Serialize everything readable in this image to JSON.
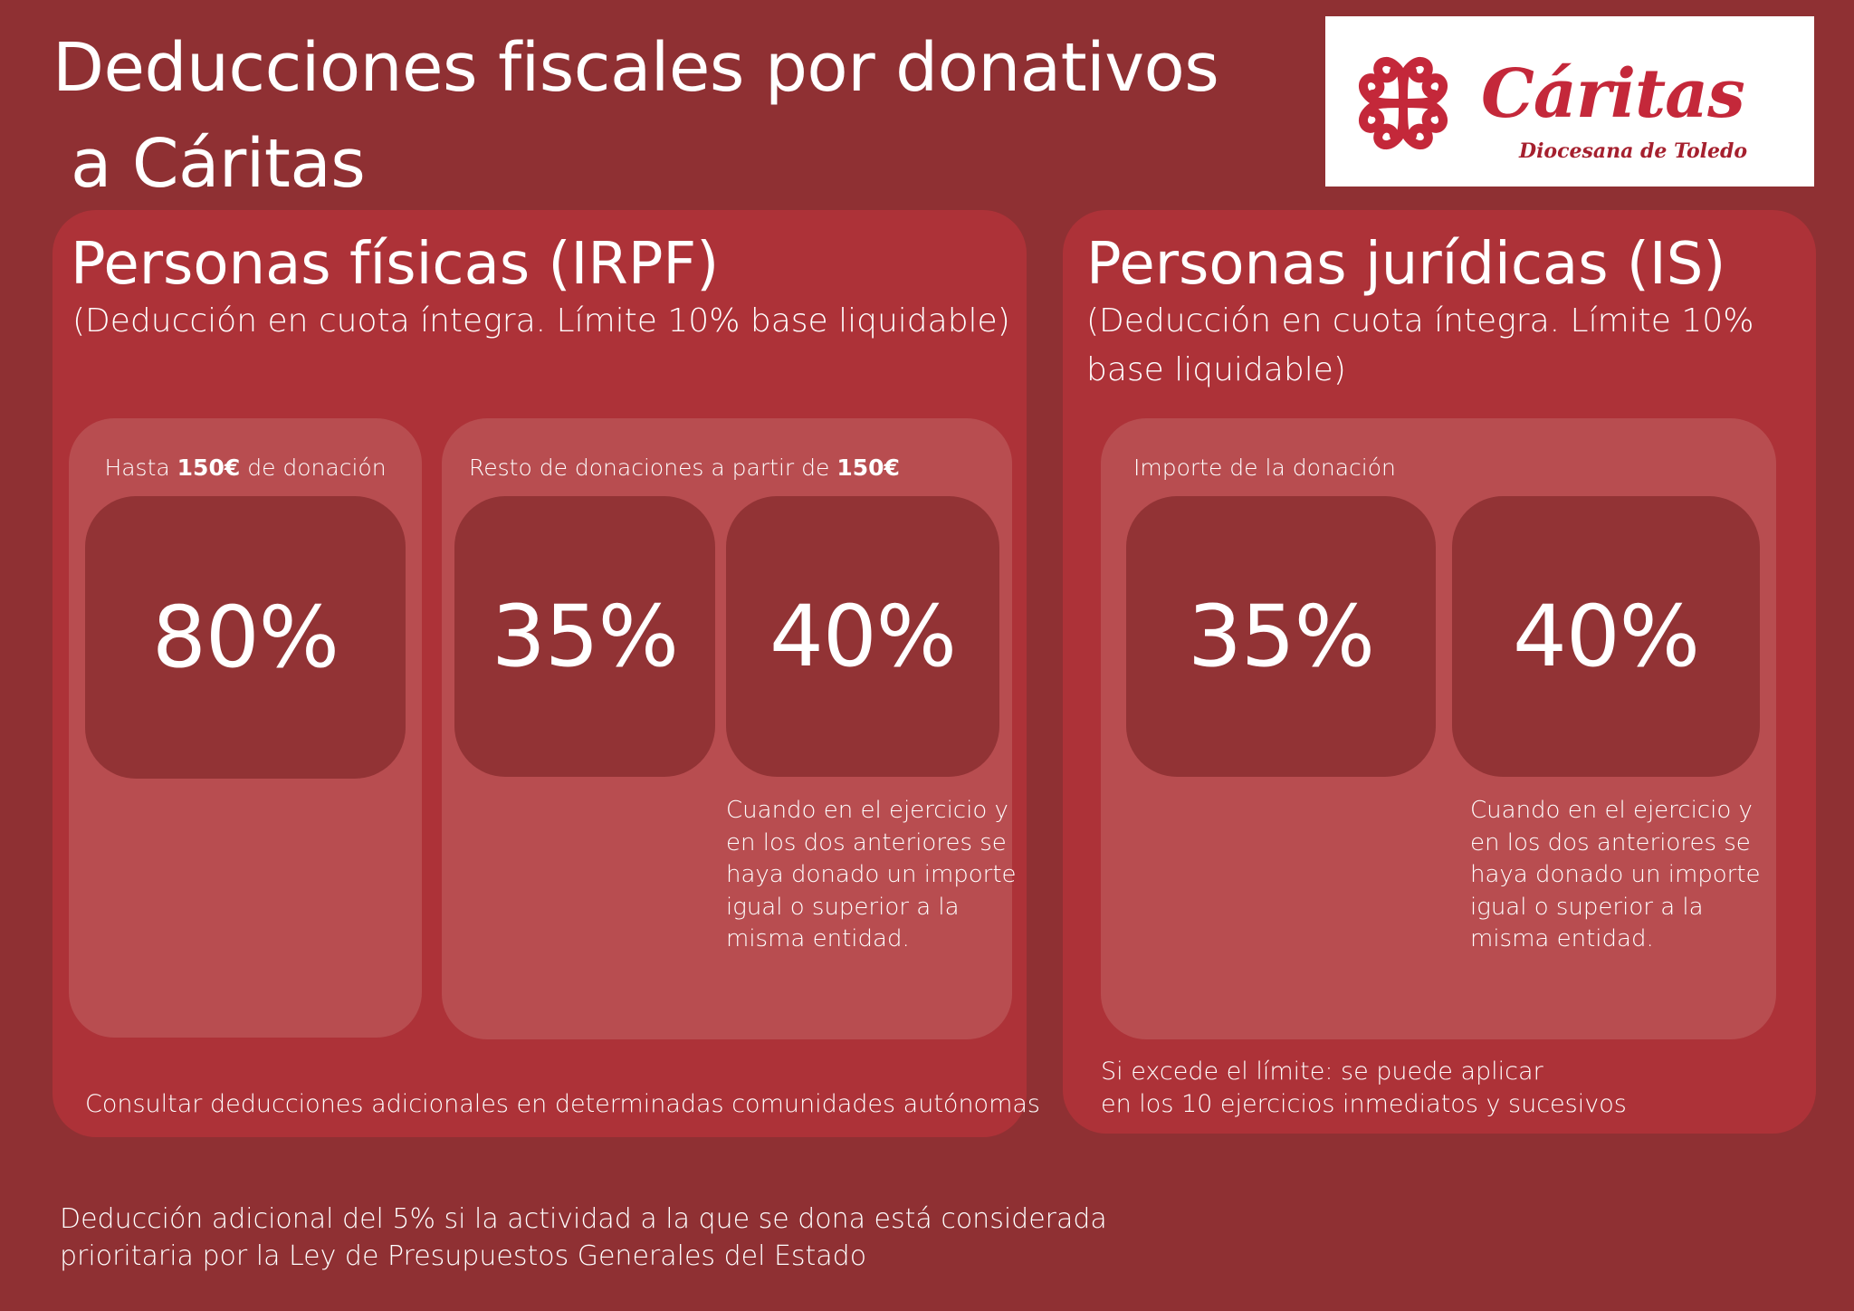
{
  "title": {
    "line1": "Deducciones fiscales por donativos",
    "line2": "a Cáritas"
  },
  "logo": {
    "name": "Cáritas",
    "subtitle": "Diocesana de Toledo",
    "icon": "caritas-cross-icon",
    "color": "#c4283a"
  },
  "colors": {
    "background": "#8f3033",
    "panel": "#ad3238",
    "card": "#b84d50",
    "box": "#923335"
  },
  "irpf": {
    "heading": "Personas físicas (IRPF)",
    "subheading": "(Deducción en cuota íntegra. Límite 10% base liquidable)",
    "card1": {
      "label_pre": "Hasta ",
      "label_bold": "150€",
      "label_post": " de donación",
      "value": "80%"
    },
    "card2": {
      "label_pre": "Resto de donaciones a partir de ",
      "label_bold": "150€",
      "value_a": "35%",
      "value_b": "40%",
      "note": [
        "Cuando en el ejercicio y",
        "en los dos anteriores se",
        "haya donado un importe",
        "igual o superior a la",
        "misma entidad."
      ]
    },
    "footer": "Consultar deducciones adicionales en determinadas comunidades autónomas"
  },
  "is": {
    "heading": "Personas jurídicas (IS)",
    "subheading_line1": "(Deducción en cuota íntegra. Límite 10%",
    "subheading_line2": "base liquidable)",
    "card": {
      "label": "Importe de la donación",
      "value_a": "35%",
      "value_b": "40%",
      "note": [
        "Cuando en el ejercicio y",
        "en los dos anteriores se",
        "haya donado un importe",
        "igual o superior a la",
        "misma entidad."
      ]
    },
    "footer_line1": "Si excede el límite: se puede aplicar",
    "footer_line2": "en los 10 ejercicios inmediatos y sucesivos"
  },
  "bottom_note": {
    "line1": "Deducción adicional del 5% si la actividad a la que se dona está considerada",
    "line2": "prioritaria por la Ley de Presupuestos Generales del Estado"
  }
}
